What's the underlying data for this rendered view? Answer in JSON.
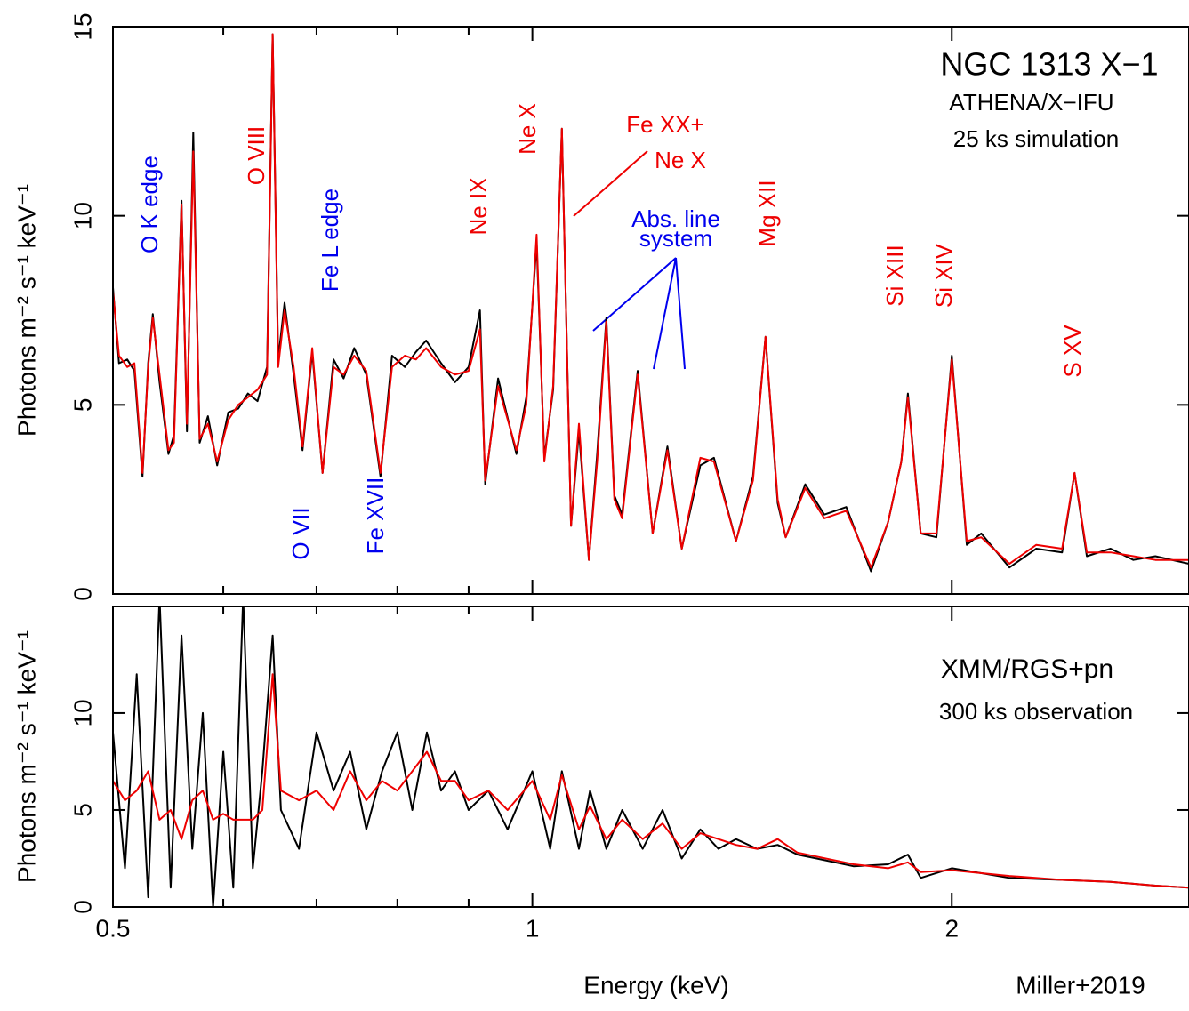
{
  "chart_data": [
    {
      "type": "line",
      "ylabel": "Photons m⁻² s⁻¹ keV⁻¹",
      "labels": [
        "NGC 1313 X−1",
        "ATHENA/X−IFU",
        "25 ks simulation"
      ],
      "annotations": [
        {
          "text": "O K edge",
          "color": "#0000ee"
        },
        {
          "text": "O VIII",
          "color": "#ee0000"
        },
        {
          "text": "Fe L edge",
          "color": "#0000ee"
        },
        {
          "text": "O VII",
          "color": "#0000ee"
        },
        {
          "text": "Fe XVII",
          "color": "#0000ee"
        },
        {
          "text": "Ne IX",
          "color": "#ee0000"
        },
        {
          "text": "Ne X",
          "color": "#ee0000"
        },
        {
          "text": "Fe XX+",
          "color": "#ee0000"
        },
        {
          "text": "Ne X",
          "color": "#ee0000"
        },
        {
          "text": "Abs. line",
          "color": "#0000ee"
        },
        {
          "text": "system",
          "color": "#0000ee"
        },
        {
          "text": "Mg XII",
          "color": "#ee0000"
        },
        {
          "text": "Si XIII",
          "color": "#ee0000"
        },
        {
          "text": "Si XIV",
          "color": "#ee0000"
        },
        {
          "text": "S XV",
          "color": "#ee0000"
        }
      ],
      "xlog": true,
      "xlim": [
        0.5,
        2.96
      ],
      "xticks": [
        0.5,
        1,
        2
      ],
      "xminorticks": [
        0.6,
        0.7,
        0.8,
        0.9
      ],
      "ylim": [
        0,
        15
      ],
      "yticks": [
        0,
        5,
        10,
        15
      ],
      "x": [
        0.5,
        0.505,
        0.512,
        0.518,
        0.525,
        0.53,
        0.534,
        0.54,
        0.548,
        0.553,
        0.56,
        0.565,
        0.571,
        0.577,
        0.585,
        0.594,
        0.605,
        0.615,
        0.625,
        0.635,
        0.645,
        0.651,
        0.657,
        0.664,
        0.674,
        0.684,
        0.695,
        0.707,
        0.72,
        0.732,
        0.745,
        0.76,
        0.778,
        0.793,
        0.81,
        0.825,
        0.839,
        0.86,
        0.88,
        0.9,
        0.917,
        0.925,
        0.945,
        0.974,
        0.99,
        1.007,
        1.02,
        1.035,
        1.05,
        1.066,
        1.08,
        1.098,
        1.113,
        1.13,
        1.145,
        1.16,
        1.19,
        1.22,
        1.25,
        1.28,
        1.32,
        1.35,
        1.4,
        1.44,
        1.47,
        1.5,
        1.52,
        1.57,
        1.62,
        1.68,
        1.75,
        1.8,
        1.84,
        1.86,
        1.9,
        1.95,
        2.0,
        2.05,
        2.1,
        2.2,
        2.3,
        2.4,
        2.45,
        2.5,
        2.6,
        2.7,
        2.8,
        2.96
      ],
      "series": [
        {
          "color": "#000000",
          "values": [
            8.1,
            6.1,
            6.2,
            5.9,
            3.1,
            6.1,
            7.4,
            5.6,
            3.7,
            4.2,
            10.4,
            4.3,
            12.2,
            4.0,
            4.7,
            3.4,
            4.8,
            4.9,
            5.3,
            5.1,
            6.0,
            14.8,
            6.2,
            7.7,
            5.8,
            3.8,
            6.4,
            3.2,
            6.2,
            5.7,
            6.5,
            5.8,
            3.1,
            6.3,
            6.0,
            6.4,
            6.7,
            6.1,
            5.6,
            6.0,
            7.5,
            2.9,
            5.7,
            3.7,
            5.2,
            9.3,
            3.6,
            5.4,
            12.3,
            1.8,
            4.3,
            0.9,
            3.7,
            7.3,
            2.6,
            2.1,
            5.9,
            1.6,
            3.9,
            1.2,
            3.4,
            3.6,
            1.4,
            3.1,
            6.8,
            2.4,
            1.5,
            2.9,
            2.1,
            2.3,
            0.6,
            1.9,
            3.5,
            5.3,
            1.6,
            1.5,
            6.3,
            1.3,
            1.6,
            0.7,
            1.2,
            1.1,
            3.2,
            1.0,
            1.2,
            0.9,
            1.0,
            0.8
          ]
        },
        {
          "color": "#ee0000",
          "values": [
            8.0,
            6.3,
            6.0,
            6.1,
            3.2,
            6.0,
            7.3,
            5.8,
            3.8,
            4.0,
            10.3,
            4.5,
            11.7,
            4.1,
            4.5,
            3.5,
            4.6,
            5.0,
            5.2,
            5.4,
            5.8,
            14.8,
            6.0,
            7.5,
            6.0,
            3.9,
            6.5,
            3.2,
            6.0,
            5.8,
            6.3,
            5.9,
            3.2,
            6.0,
            6.3,
            6.2,
            6.5,
            6.0,
            5.8,
            5.9,
            7.0,
            3.0,
            5.5,
            3.8,
            5.0,
            9.5,
            3.5,
            5.5,
            12.3,
            1.8,
            4.5,
            0.9,
            3.5,
            7.2,
            2.5,
            2.0,
            5.8,
            1.6,
            3.8,
            1.2,
            3.6,
            3.5,
            1.4,
            3.0,
            6.8,
            2.5,
            1.5,
            2.8,
            2.0,
            2.2,
            0.7,
            1.9,
            3.5,
            5.2,
            1.6,
            1.6,
            6.2,
            1.4,
            1.5,
            0.8,
            1.3,
            1.2,
            3.2,
            1.1,
            1.1,
            1.0,
            0.9,
            0.9
          ]
        }
      ]
    },
    {
      "type": "line",
      "ylabel": "Photons m⁻² s⁻¹ keV⁻¹",
      "labels": [
        "XMM/RGS+pn",
        "300 ks observation"
      ],
      "xlabel": "Energy (keV)",
      "credit": "Miller+2019",
      "xlog": true,
      "xlim": [
        0.5,
        2.96
      ],
      "xticks": [
        0.5,
        1,
        2
      ],
      "xminorticks": [
        0.6,
        0.7,
        0.8,
        0.9
      ],
      "ylim": [
        0,
        15.5
      ],
      "yticks": [
        0,
        5,
        10
      ],
      "x": [
        0.5,
        0.51,
        0.52,
        0.53,
        0.54,
        0.55,
        0.56,
        0.57,
        0.58,
        0.59,
        0.6,
        0.61,
        0.62,
        0.63,
        0.64,
        0.651,
        0.66,
        0.68,
        0.7,
        0.72,
        0.74,
        0.76,
        0.78,
        0.8,
        0.82,
        0.84,
        0.86,
        0.88,
        0.9,
        0.93,
        0.96,
        1.0,
        1.03,
        1.05,
        1.08,
        1.1,
        1.13,
        1.16,
        1.2,
        1.24,
        1.28,
        1.32,
        1.36,
        1.4,
        1.45,
        1.5,
        1.55,
        1.6,
        1.7,
        1.8,
        1.86,
        1.9,
        2.0,
        2.2,
        2.4,
        2.6,
        2.8,
        2.96
      ],
      "series": [
        {
          "color": "#000000",
          "values": [
            9,
            2,
            12,
            0.5,
            16,
            1,
            14,
            3,
            10,
            0,
            8,
            1,
            16,
            2,
            7,
            14,
            5,
            3,
            9,
            6,
            8,
            4,
            7,
            9,
            5,
            9,
            6,
            7,
            5,
            6,
            4,
            7,
            3,
            7,
            3,
            6,
            3,
            5,
            3,
            5,
            2.5,
            4,
            3,
            3.5,
            3,
            3.2,
            2.7,
            2.5,
            2.1,
            2.2,
            2.7,
            1.5,
            2.0,
            1.5,
            1.4,
            1.3,
            1.1,
            1.0
          ]
        },
        {
          "color": "#ee0000",
          "values": [
            6.5,
            5.5,
            6.0,
            7.0,
            4.5,
            5.0,
            3.5,
            5.5,
            6.0,
            4.5,
            4.8,
            4.5,
            4.5,
            4.5,
            5.0,
            12.0,
            6.0,
            5.5,
            6.0,
            5.0,
            7.0,
            5.5,
            6.5,
            6.0,
            7.0,
            8.0,
            6.5,
            6.5,
            5.5,
            6.0,
            5.0,
            6.5,
            4.5,
            6.8,
            4.0,
            5.2,
            3.5,
            4.5,
            3.5,
            4.3,
            3.0,
            3.8,
            3.5,
            3.2,
            3.0,
            3.5,
            2.8,
            2.6,
            2.2,
            2.0,
            2.3,
            1.8,
            1.9,
            1.6,
            1.4,
            1.3,
            1.1,
            1.0
          ]
        }
      ]
    }
  ]
}
